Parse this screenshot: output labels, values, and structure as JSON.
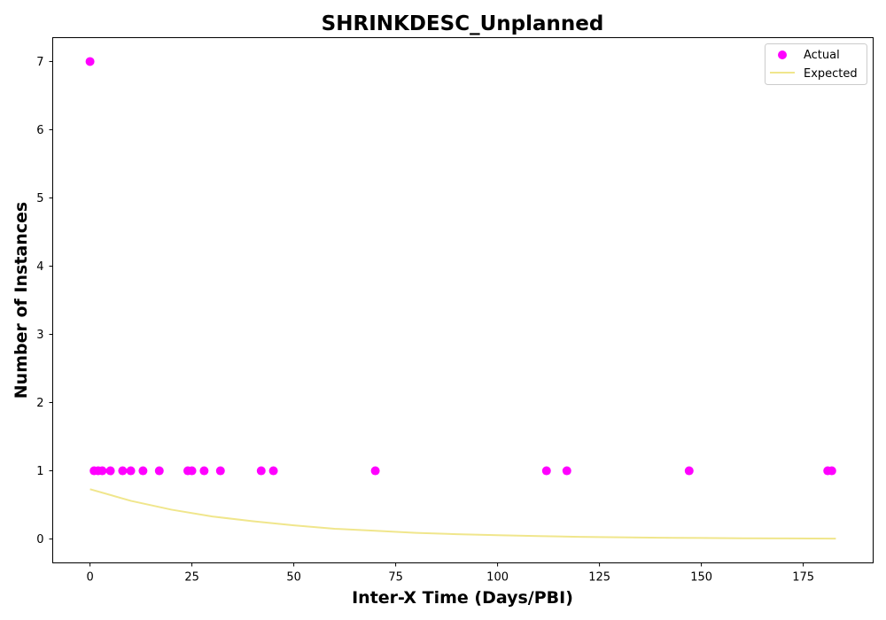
{
  "chart_data": {
    "type": "scatter",
    "title": "SHRINKDESC_Unplanned",
    "xlabel": "Inter-X Time (Days/PBI)",
    "ylabel": "Number of Instances",
    "xlim": [
      -9.15,
      192.15
    ],
    "ylim": [
      -0.35,
      7.35
    ],
    "xticks": [
      0,
      25,
      50,
      75,
      100,
      125,
      150,
      175
    ],
    "yticks": [
      0,
      1,
      2,
      3,
      4,
      5,
      6,
      7
    ],
    "grid": false,
    "legend_position": "top-right",
    "series": [
      {
        "name": "Actual",
        "kind": "scatter",
        "color": "#ff00ff",
        "points": [
          [
            0,
            7
          ],
          [
            1,
            1
          ],
          [
            2,
            1
          ],
          [
            3,
            1
          ],
          [
            5,
            1
          ],
          [
            8,
            1
          ],
          [
            10,
            1
          ],
          [
            13,
            1
          ],
          [
            17,
            1
          ],
          [
            24,
            1
          ],
          [
            25,
            1
          ],
          [
            28,
            1
          ],
          [
            32,
            1
          ],
          [
            42,
            1
          ],
          [
            45,
            1
          ],
          [
            70,
            1
          ],
          [
            112,
            1
          ],
          [
            117,
            1
          ],
          [
            147,
            1
          ],
          [
            181,
            1
          ],
          [
            182,
            1
          ]
        ]
      },
      {
        "name": "Expected",
        "kind": "line",
        "color": "#f0e68c",
        "points": [
          [
            0,
            0.73
          ],
          [
            10,
            0.56
          ],
          [
            20,
            0.43
          ],
          [
            30,
            0.33
          ],
          [
            40,
            0.26
          ],
          [
            50,
            0.2
          ],
          [
            60,
            0.15
          ],
          [
            70,
            0.12
          ],
          [
            80,
            0.09
          ],
          [
            90,
            0.07
          ],
          [
            100,
            0.055
          ],
          [
            110,
            0.042
          ],
          [
            120,
            0.032
          ],
          [
            130,
            0.025
          ],
          [
            140,
            0.019
          ],
          [
            150,
            0.015
          ],
          [
            160,
            0.011
          ],
          [
            170,
            0.009
          ],
          [
            183,
            0.006
          ]
        ]
      }
    ]
  }
}
